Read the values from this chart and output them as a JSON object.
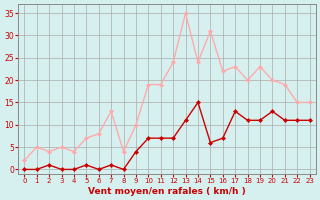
{
  "x": [
    0,
    1,
    2,
    3,
    4,
    5,
    6,
    7,
    8,
    9,
    10,
    11,
    12,
    13,
    14,
    15,
    16,
    17,
    18,
    19,
    20,
    21,
    22,
    23
  ],
  "wind_mean": [
    0,
    0,
    1,
    0,
    0,
    1,
    0,
    1,
    0,
    4,
    7,
    7,
    7,
    11,
    15,
    6,
    7,
    13,
    11,
    11,
    13,
    11,
    11,
    11
  ],
  "wind_gust": [
    2,
    5,
    4,
    5,
    4,
    7,
    8,
    13,
    4,
    10,
    19,
    19,
    24,
    35,
    24,
    31,
    22,
    23,
    20,
    23,
    20,
    19,
    15,
    15
  ],
  "color_mean": "#cc0000",
  "color_gust": "#ffaaaa",
  "background": "#d6f0f0",
  "grid_color": "#aaaaaa",
  "xlabel": "Vent moyen/en rafales ( km/h )",
  "xlabel_color": "#cc0000",
  "yticks": [
    0,
    5,
    10,
    15,
    20,
    25,
    30,
    35
  ],
  "xticks": [
    0,
    1,
    2,
    3,
    4,
    5,
    6,
    7,
    8,
    9,
    10,
    11,
    12,
    13,
    14,
    15,
    16,
    17,
    18,
    19,
    20,
    21,
    22,
    23
  ],
  "ylim": [
    -1,
    37
  ],
  "xlim": [
    -0.5,
    23.5
  ]
}
